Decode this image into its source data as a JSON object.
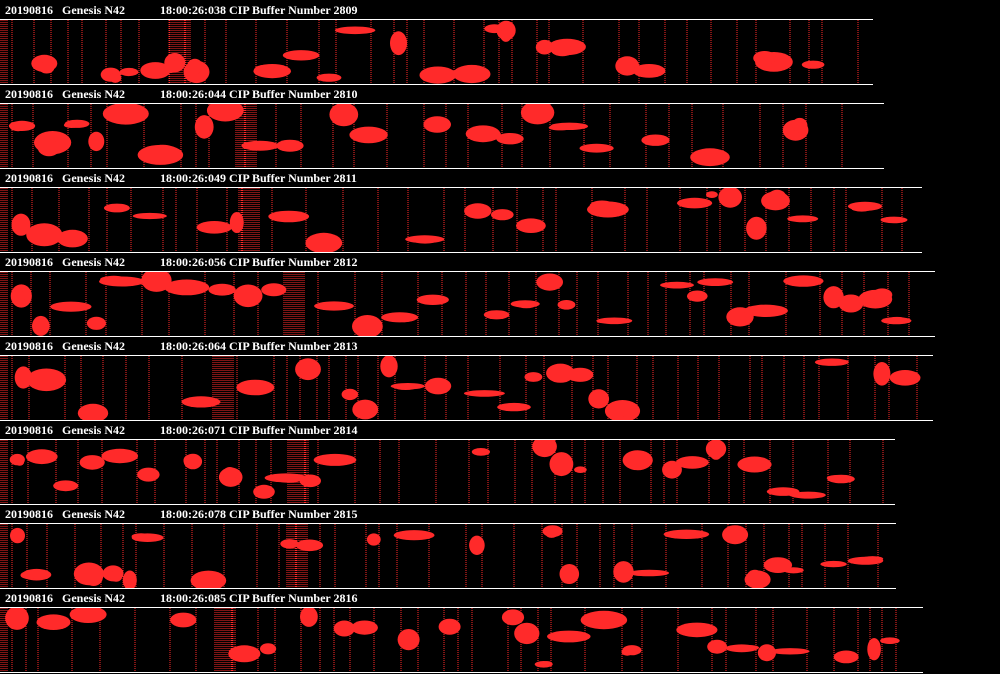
{
  "accent_color": "#ff2a2a",
  "background_color": "#000000",
  "buffers": [
    {
      "date": "20190816",
      "probe": "Genesis N42",
      "timestamp": "18:00:26:038 CIP Buffer Number 2809"
    },
    {
      "date": "20190816",
      "probe": "Genesis N42",
      "timestamp": "18:00:26:044 CIP Buffer Number 2810"
    },
    {
      "date": "20190816",
      "probe": "Genesis N42",
      "timestamp": "18:00:26:049 CIP Buffer Number 2811"
    },
    {
      "date": "20190816",
      "probe": "Genesis N42",
      "timestamp": "18:00:26:056 CIP Buffer Number 2812"
    },
    {
      "date": "20190816",
      "probe": "Genesis N42",
      "timestamp": "18:00:26:064 CIP Buffer Number 2813"
    },
    {
      "date": "20190816",
      "probe": "Genesis N42",
      "timestamp": "18:00:26:071 CIP Buffer Number 2814"
    },
    {
      "date": "20190816",
      "probe": "Genesis N42",
      "timestamp": "18:00:26:078 CIP Buffer Number 2815"
    },
    {
      "date": "20190816",
      "probe": "Genesis N42",
      "timestamp": "18:00:26:085 CIP Buffer Number 2816"
    }
  ]
}
